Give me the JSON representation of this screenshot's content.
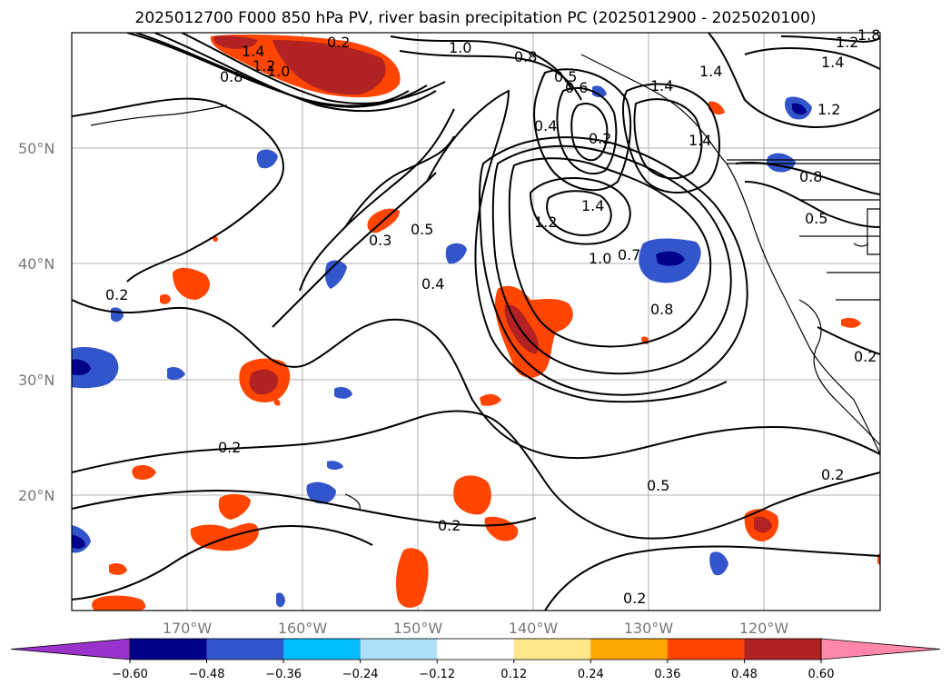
{
  "title": "2025012700 F000 850 hPa PV, river basin precipitation PC (2025012900 - 2025020100)",
  "map": {
    "lat_labels": [
      "50°N",
      "40°N",
      "30°N",
      "20°N"
    ],
    "lon_labels": [
      "170°W",
      "160°W",
      "150°W",
      "140°W",
      "130°W",
      "120°W"
    ],
    "contour_labels": [
      "1.4",
      "1.2",
      "1.0",
      "0.8",
      "0.2",
      "1.0",
      "0.8",
      "0.5",
      "0.6",
      "0.4",
      "0.2",
      "1.4",
      "1.4",
      "1.4",
      "1.2",
      "1.8",
      "1.4",
      "1.2",
      "0.8",
      "0.5",
      "0.3",
      "0.5",
      "0.4",
      "1.4",
      "1.2",
      "1.0",
      "0.7",
      "0.8",
      "0.2",
      "0.2",
      "0.2",
      "0.5",
      "0.2",
      "0.2",
      "0.2"
    ],
    "colors": {
      "contour": "#000000",
      "grid": "#b0b0b0",
      "coast": "#000000"
    }
  },
  "colorbar": {
    "colors": [
      "#9933cc",
      "#00008b",
      "#3355cc",
      "#00bbff",
      "#aee0fa",
      "#ffffff",
      "#ffe88a",
      "#ffa500",
      "#ff4500",
      "#b22222",
      "#ff88aa"
    ],
    "ticks": [
      "−0.60",
      "−0.48",
      "−0.36",
      "−0.24",
      "−0.12",
      "0.12",
      "0.24",
      "0.36",
      "0.48",
      "0.60"
    ]
  }
}
